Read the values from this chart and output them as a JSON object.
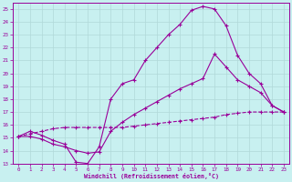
{
  "xlabel": "Windchill (Refroidissement éolien,°C)",
  "bg_color": "#c8f0f0",
  "grid_color": "#b0d8d8",
  "line_color": "#990099",
  "xlim": [
    -0.5,
    23.5
  ],
  "ylim": [
    13,
    25.5
  ],
  "xticks": [
    0,
    1,
    2,
    3,
    4,
    5,
    6,
    7,
    8,
    9,
    10,
    11,
    12,
    13,
    14,
    15,
    16,
    17,
    18,
    19,
    20,
    21,
    22,
    23
  ],
  "yticks": [
    13,
    14,
    15,
    16,
    17,
    18,
    19,
    20,
    21,
    22,
    23,
    24,
    25
  ],
  "curve1_x": [
    0,
    1,
    2,
    3,
    4,
    5,
    6,
    7,
    8,
    9,
    10,
    11,
    12,
    13,
    14,
    15,
    16,
    17,
    18,
    19,
    20,
    21,
    22,
    23
  ],
  "curve1_y": [
    15.1,
    15.5,
    15.2,
    14.8,
    14.5,
    13.1,
    13.0,
    14.3,
    18.0,
    19.2,
    19.5,
    21.0,
    22.0,
    23.0,
    23.8,
    24.9,
    25.2,
    25.0,
    23.7,
    21.4,
    20.0,
    19.2,
    17.5,
    17.0
  ],
  "curve2_x": [
    0,
    1,
    2,
    3,
    4,
    5,
    6,
    7,
    8,
    9,
    10,
    11,
    12,
    13,
    14,
    15,
    16,
    17,
    18,
    19,
    20,
    21,
    22,
    23
  ],
  "curve2_y": [
    15.1,
    15.1,
    14.9,
    14.5,
    14.3,
    14.0,
    13.8,
    13.9,
    15.5,
    16.2,
    16.8,
    17.3,
    17.8,
    18.3,
    18.8,
    19.2,
    19.6,
    21.5,
    20.5,
    19.5,
    19.0,
    18.5,
    17.5,
    17.0
  ],
  "curve3_x": [
    0,
    1,
    2,
    3,
    4,
    5,
    6,
    7,
    8,
    9,
    10,
    11,
    12,
    13,
    14,
    15,
    16,
    17,
    18,
    19,
    20,
    21,
    22,
    23
  ],
  "curve3_y": [
    15.1,
    15.3,
    15.5,
    15.7,
    15.8,
    15.8,
    15.8,
    15.8,
    15.8,
    15.8,
    15.9,
    16.0,
    16.1,
    16.2,
    16.3,
    16.4,
    16.5,
    16.6,
    16.8,
    16.9,
    17.0,
    17.0,
    17.0,
    17.0
  ]
}
